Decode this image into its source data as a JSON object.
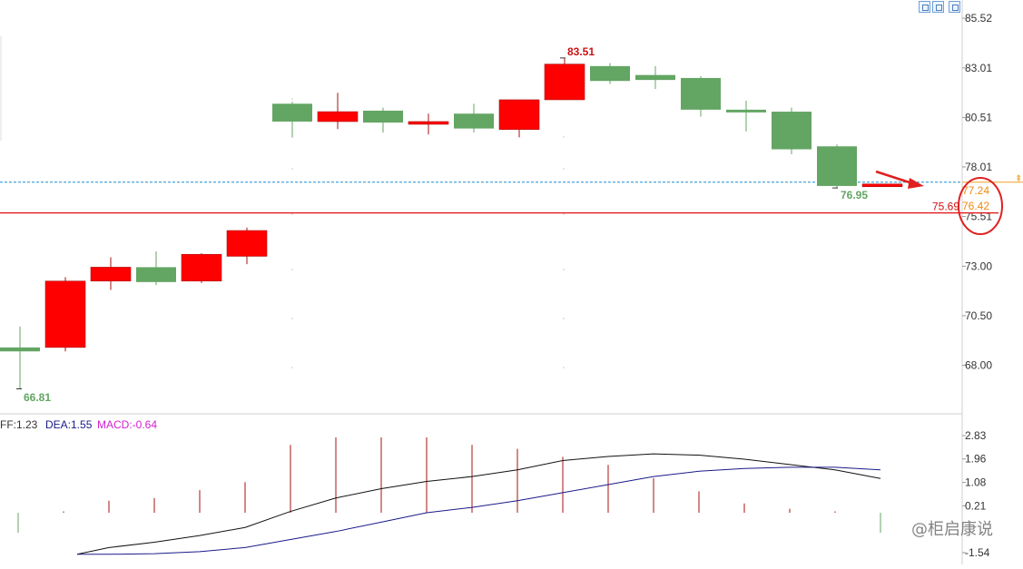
{
  "chart_data": [
    {
      "type": "candlestick",
      "yaxis_ticks": [
        "85.52",
        "83.01",
        "80.51",
        "78.01",
        "75.51",
        "73.00",
        "70.50",
        "68.00"
      ],
      "ylim": [
        65.5,
        85.8
      ],
      "candles": [
        {
          "open": 68.9,
          "high": 69.95,
          "low": 66.81,
          "close": 68.7
        },
        {
          "open": 68.9,
          "high": 72.45,
          "low": 68.7,
          "close": 72.25
        },
        {
          "open": 72.25,
          "high": 73.45,
          "low": 71.8,
          "close": 72.95
        },
        {
          "open": 72.95,
          "high": 73.75,
          "low": 72.05,
          "close": 72.2
        },
        {
          "open": 72.25,
          "high": 73.65,
          "low": 72.15,
          "close": 73.6
        },
        {
          "open": 73.5,
          "high": 74.95,
          "low": 73.1,
          "close": 74.8
        },
        {
          "open": 81.2,
          "high": 81.3,
          "low": 79.5,
          "close": 80.3
        },
        {
          "open": 80.3,
          "high": 81.75,
          "low": 79.92,
          "close": 80.8
        },
        {
          "open": 80.85,
          "high": 81.0,
          "low": 79.75,
          "close": 80.25
        },
        {
          "open": 80.2,
          "high": 80.7,
          "low": 79.65,
          "close": 80.3
        },
        {
          "open": 80.7,
          "high": 81.2,
          "low": 79.75,
          "close": 79.95
        },
        {
          "open": 79.9,
          "high": 81.4,
          "low": 79.5,
          "close": 81.4
        },
        {
          "open": 81.4,
          "high": 83.51,
          "low": 81.4,
          "close": 83.2
        },
        {
          "open": 83.1,
          "high": 83.25,
          "low": 82.2,
          "close": 82.35
        },
        {
          "open": 82.65,
          "high": 83.1,
          "low": 81.95,
          "close": 82.4
        },
        {
          "open": 82.5,
          "high": 82.6,
          "low": 80.55,
          "close": 80.9
        },
        {
          "open": 80.9,
          "high": 81.35,
          "low": 79.8,
          "close": 80.8
        },
        {
          "open": 80.8,
          "high": 81.0,
          "low": 78.65,
          "close": 78.9
        },
        {
          "open": 79.05,
          "high": 79.15,
          "low": 76.95,
          "close": 77.05
        },
        {
          "open": 77.05,
          "high": 77.15,
          "low": 77.0,
          "close": 77.15
        }
      ],
      "high_label": "83.51",
      "low_label_1": "66.81",
      "low_label_2": "76.95",
      "reference_lines": [
        {
          "value": 77.24,
          "label": "77.24",
          "style": "dashed",
          "color": "#1f8ad6"
        },
        {
          "value": 75.69,
          "label": "75.69",
          "style": "solid",
          "color": "#e01010"
        }
      ],
      "price_label_current": "76.42",
      "colors": {
        "up": "#ff0000",
        "down": "#63a563",
        "up_border": "#aa1111"
      }
    },
    {
      "type": "macd",
      "legend": {
        "diff": "FF:1.23",
        "dea": "DEA:1.55",
        "macd": "MACD:-0.64"
      },
      "yaxis_ticks": [
        "2.83",
        "1.96",
        "1.08",
        "0.21",
        "-1.54"
      ],
      "ylim": [
        -1.65,
        2.9
      ],
      "macd_bars": [
        -0.65,
        0.05,
        0.45,
        0.55,
        0.85,
        1.15,
        2.55,
        2.83,
        2.83,
        2.83,
        2.55,
        2.4,
        2.1,
        1.8,
        1.3,
        0.8,
        0.35,
        0.15,
        0.05,
        -0.64
      ],
      "diff": [
        null,
        -1.6,
        -1.35,
        -1.15,
        -0.9,
        -0.6,
        0.0,
        0.5,
        0.85,
        1.12,
        1.3,
        1.55,
        1.9,
        2.05,
        2.15,
        2.1,
        1.95,
        1.75,
        1.55,
        1.23
      ],
      "dea": [
        null,
        -1.6,
        -1.6,
        -1.58,
        -1.5,
        -1.35,
        -1.05,
        -0.75,
        -0.4,
        -0.05,
        0.15,
        0.4,
        0.7,
        1.0,
        1.3,
        1.5,
        1.6,
        1.65,
        1.65,
        1.55
      ]
    }
  ],
  "watermark": "@柜启康说"
}
